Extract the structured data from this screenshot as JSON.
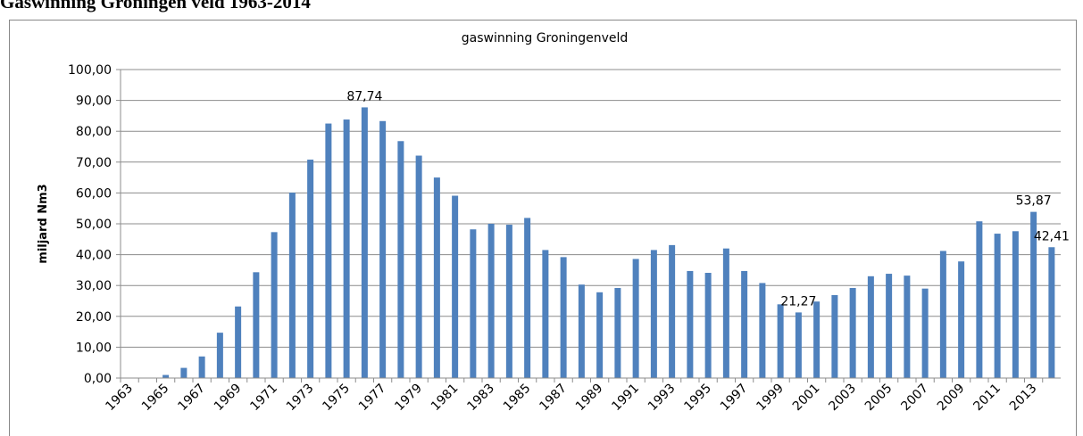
{
  "heading": "Gaswinning Groningen veld 1963-2014",
  "chart_data": {
    "type": "bar",
    "title": "gaswinning Groningenveld",
    "y_label": "miljard Nm3",
    "color": "#4f81bd",
    "grid": true,
    "categories": [
      "1963",
      null,
      "1965",
      null,
      "1967",
      null,
      "1969",
      null,
      "1971",
      null,
      "1973",
      null,
      "1975",
      null,
      "1977",
      null,
      "1979",
      null,
      "1981",
      null,
      "1983",
      null,
      "1985",
      null,
      "1987",
      null,
      "1989",
      null,
      "1991",
      null,
      "1993",
      null,
      "1995",
      null,
      "1997",
      null,
      "1999",
      null,
      "2001",
      null,
      "2003",
      null,
      "2005",
      null,
      "2007",
      null,
      "2009",
      null,
      "2011",
      null,
      "2013",
      null
    ],
    "values": [
      0,
      0,
      1.0,
      3.3,
      7.0,
      14.7,
      23.2,
      34.3,
      47.3,
      60.1,
      70.8,
      82.5,
      83.8,
      87.74,
      83.3,
      76.8,
      72.1,
      65.0,
      59.1,
      48.2,
      50.0,
      49.7,
      51.9,
      41.5,
      39.2,
      30.3,
      27.8,
      29.2,
      38.6,
      41.5,
      43.1,
      34.7,
      34.1,
      42.0,
      34.7,
      30.8,
      23.9,
      21.27,
      24.8,
      26.9,
      29.2,
      33.0,
      33.8,
      33.2,
      29.0,
      41.2,
      37.8,
      50.8,
      46.8,
      47.6,
      53.87,
      42.41
    ],
    "value_labels": [
      null,
      null,
      null,
      null,
      null,
      null,
      null,
      null,
      null,
      null,
      null,
      null,
      null,
      "87,74",
      null,
      null,
      null,
      null,
      null,
      null,
      null,
      null,
      null,
      null,
      null,
      null,
      null,
      null,
      null,
      null,
      null,
      null,
      null,
      null,
      null,
      null,
      null,
      "21,27",
      null,
      null,
      null,
      null,
      null,
      null,
      null,
      null,
      null,
      null,
      null,
      null,
      "53,87",
      "42,41"
    ],
    "ylim": [
      0,
      100
    ],
    "yticks": [
      {
        "value": 0,
        "label": "0,00"
      },
      {
        "value": 10,
        "label": "10,00"
      },
      {
        "value": 20,
        "label": "20,00"
      },
      {
        "value": 30,
        "label": "30,00"
      },
      {
        "value": 40,
        "label": "40,00"
      },
      {
        "value": 50,
        "label": "50,00"
      },
      {
        "value": 60,
        "label": "60,00"
      },
      {
        "value": 70,
        "label": "70,00"
      },
      {
        "value": 80,
        "label": "80,00"
      },
      {
        "value": 90,
        "label": "90,00"
      },
      {
        "value": 100,
        "label": "100,00"
      }
    ]
  }
}
